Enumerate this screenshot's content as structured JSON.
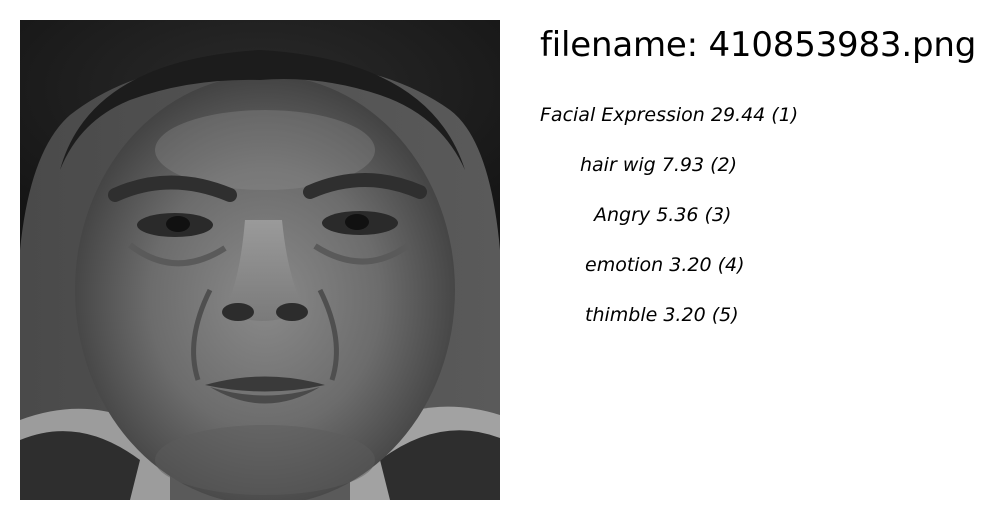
{
  "header": {
    "filename_text": "filename: 410853983.png"
  },
  "image": {
    "description_icon": "grayscale-face-photo"
  },
  "predictions": [
    {
      "text": "Facial Expression 29.44 (1)"
    },
    {
      "text": "hair wig  7.93 (2)"
    },
    {
      "text": "Angry  5.36 (3)"
    },
    {
      "text": "emotion  3.20 (4)"
    },
    {
      "text": "thimble  3.20 (5)"
    }
  ]
}
